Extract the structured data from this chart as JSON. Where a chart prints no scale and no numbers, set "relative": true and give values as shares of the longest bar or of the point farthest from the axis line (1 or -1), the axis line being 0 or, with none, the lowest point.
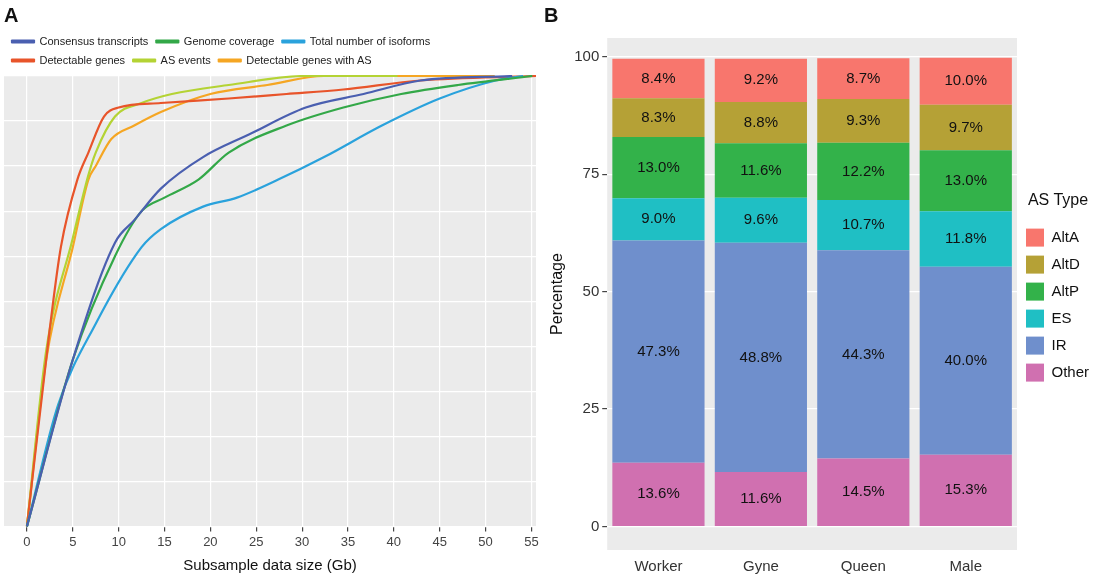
{
  "chart_data": [
    {
      "type": "line",
      "title": "A",
      "xlabel": "Subsample data size (Gb)",
      "relative": true,
      "xlim": [
        -2.5,
        55.5
      ],
      "xticks": [
        0,
        5,
        10,
        15,
        20,
        25,
        30,
        35,
        40,
        45,
        50,
        55
      ],
      "grid": true,
      "legend": "top",
      "series": [
        {
          "name": "Consensus transcripts",
          "color": "#4a5fb0",
          "x": [
            0,
            5,
            9.6,
            11.7,
            14.6,
            19.2,
            24.2,
            30.4,
            36.7,
            42.9,
            52.9
          ],
          "values": [
            0,
            0.37,
            0.63,
            0.68,
            0.75,
            0.82,
            0.87,
            0.93,
            0.96,
            0.99,
            1.0
          ]
        },
        {
          "name": "Genome coverage",
          "color": "#33a848",
          "x": [
            0,
            5,
            9.6,
            12.5,
            15,
            18.7,
            22,
            28.3,
            34.5,
            40.8,
            47,
            55.1
          ],
          "values": [
            0,
            0.37,
            0.6,
            0.7,
            0.73,
            0.77,
            0.83,
            0.89,
            0.93,
            0.96,
            0.98,
            1.0
          ]
        },
        {
          "name": "Total number of isoforms",
          "color": "#2aa2dc",
          "x": [
            0,
            3.4,
            7.5,
            12.5,
            14.6,
            19.2,
            22.9,
            27.4,
            32.4,
            38.7,
            45,
            51.1,
            54.1
          ],
          "values": [
            0,
            0.27,
            0.45,
            0.62,
            0.66,
            0.71,
            0.73,
            0.77,
            0.82,
            0.89,
            0.95,
            0.99,
            1.0
          ]
        },
        {
          "name": "Detectable genes",
          "color": "#e8542a",
          "x": [
            0,
            2.5,
            3.7,
            5.5,
            6.7,
            8.4,
            10,
            14.6,
            22,
            28.3,
            34.5,
            42.9,
            55.5
          ],
          "values": [
            0,
            0.44,
            0.62,
            0.77,
            0.83,
            0.91,
            0.93,
            0.94,
            0.95,
            0.96,
            0.97,
            0.99,
            1.0
          ]
        },
        {
          "name": "AS events",
          "color": "#b4d334",
          "x": [
            0,
            2.1,
            5,
            6.7,
            7.5,
            9.6,
            12.5,
            15.8,
            22,
            30.4,
            36.7,
            40.4
          ],
          "values": [
            0,
            0.39,
            0.64,
            0.78,
            0.83,
            0.91,
            0.94,
            0.96,
            0.98,
            1.0,
            1.0,
            1.0
          ]
        },
        {
          "name": "Detectable genes with AS",
          "color": "#f5a623",
          "x": [
            0,
            2.1,
            5,
            6.7,
            7.5,
            9.2,
            11.7,
            14.6,
            20,
            26.2,
            32.4,
            38.7,
            45,
            51
          ],
          "values": [
            0,
            0.37,
            0.62,
            0.77,
            0.8,
            0.86,
            0.89,
            0.92,
            0.96,
            0.98,
            1.0,
            1.0,
            1.0,
            1.0
          ]
        }
      ]
    },
    {
      "type": "bar",
      "title": "B",
      "ylabel": "Percentage",
      "legend_title": "AS Type",
      "legend": "right",
      "stacked": true,
      "grid": "y",
      "ylim": [
        -5,
        104
      ],
      "yticks": [
        0,
        25,
        50,
        75,
        100
      ],
      "categories": [
        "Worker",
        "Gyne",
        "Queen",
        "Male"
      ],
      "series": [
        {
          "name": "Other",
          "color": "#d070b0",
          "values": [
            13.6,
            11.6,
            14.5,
            15.3
          ],
          "value_labels": [
            "13.6%",
            "11.6%",
            "14.5%",
            "15.3%"
          ]
        },
        {
          "name": "IR",
          "color": "#6f8fcc",
          "values": [
            47.3,
            48.8,
            44.3,
            40.0
          ],
          "value_labels": [
            "47.3%",
            "48.8%",
            "44.3%",
            "40.0%"
          ]
        },
        {
          "name": "ES",
          "color": "#1fbfc4",
          "values": [
            9.0,
            9.6,
            10.7,
            11.8
          ],
          "value_labels": [
            "9.0%",
            "9.6%",
            "10.7%",
            "11.8%"
          ]
        },
        {
          "name": "AltP",
          "color": "#33b24a",
          "values": [
            13.0,
            11.6,
            12.2,
            13.0
          ],
          "value_labels": [
            "13.0%",
            "11.6%",
            "12.2%",
            "13.0%"
          ]
        },
        {
          "name": "AltD",
          "color": "#b5a136",
          "values": [
            8.3,
            8.8,
            9.3,
            9.7
          ],
          "value_labels": [
            "8.3%",
            "8.8%",
            "9.3%",
            "9.7%"
          ]
        },
        {
          "name": "AltA",
          "color": "#f8766d",
          "values": [
            8.4,
            9.2,
            8.7,
            10.0
          ],
          "value_labels": [
            "8.4%",
            "9.2%",
            "8.7%",
            "10.0%"
          ]
        }
      ]
    }
  ]
}
